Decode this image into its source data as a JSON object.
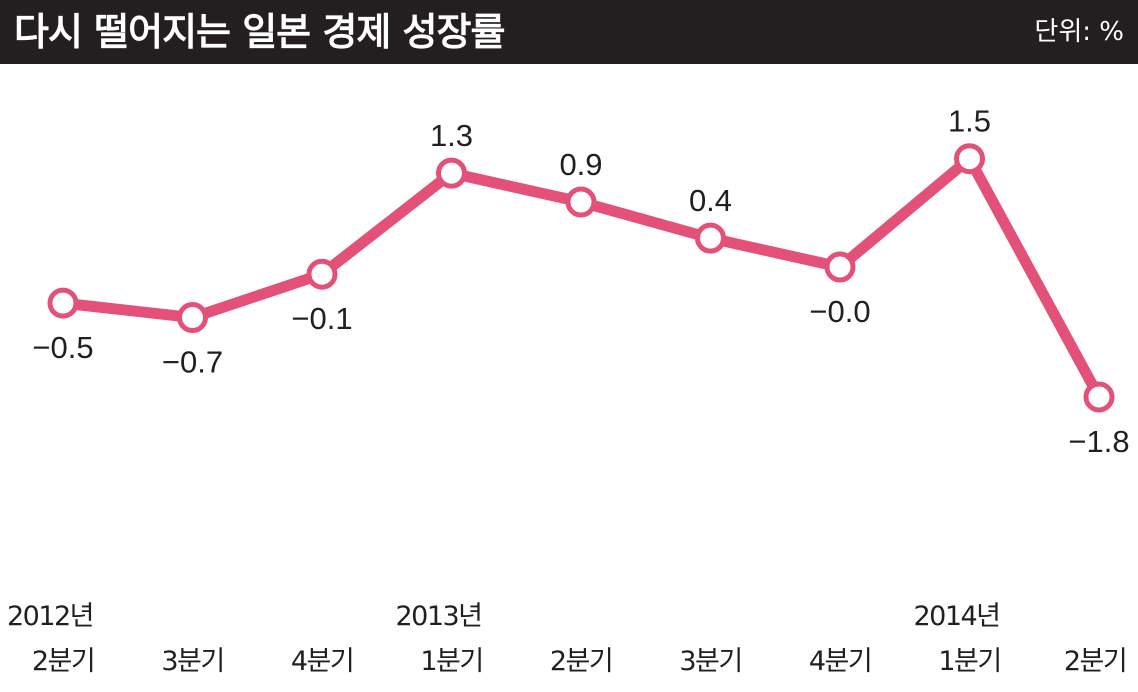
{
  "header": {
    "title": "다시 떨어지는 일본 경제 성장률",
    "unit": "단위: %"
  },
  "colors": {
    "line": "#e35078",
    "header_bg": "#231f20"
  },
  "chart_data": {
    "type": "line",
    "title": "다시 떨어지는 일본 경제 성장률",
    "unit": "단위: %",
    "categories": [
      [
        "2012년",
        "2분기"
      ],
      [
        "",
        "3분기"
      ],
      [
        "",
        "4분기"
      ],
      [
        "2013년",
        "1분기"
      ],
      [
        "",
        "2분기"
      ],
      [
        "",
        "3분기"
      ],
      [
        "",
        "4분기"
      ],
      [
        "2014년",
        "1분기"
      ],
      [
        "",
        "2분기"
      ]
    ],
    "values": [
      -0.5,
      -0.7,
      -0.1,
      1.3,
      0.9,
      0.4,
      -0.0,
      1.5,
      -1.8
    ],
    "value_labels": [
      "−0.5",
      "−0.7",
      "−0.1",
      "1.3",
      "0.9",
      "0.4",
      "−0.0",
      "1.5",
      "−1.8"
    ],
    "label_position": [
      "below",
      "below",
      "below",
      "above",
      "above",
      "above",
      "below",
      "above",
      "below"
    ],
    "grid": false,
    "legend": "none"
  }
}
